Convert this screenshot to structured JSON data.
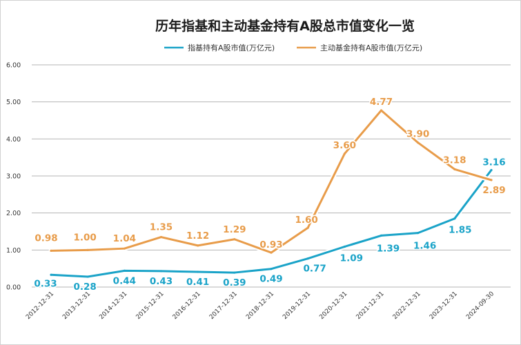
{
  "chart_data": {
    "type": "line",
    "title": "历年指基和主动基金持有A股总市值变化一览",
    "categories": [
      "2012-12-31",
      "2013-12-31",
      "2014-12-31",
      "2015-12-31",
      "2016-12-31",
      "2017-12-31",
      "2018-12-31",
      "2019-12-31",
      "2020-12-31",
      "2021-12-31",
      "2022-12-31",
      "2023-12-31",
      "2024-09-30"
    ],
    "series": [
      {
        "name": "指基持有A股市值(万亿元)",
        "color": "#1aa3c8",
        "values": [
          0.33,
          0.28,
          0.44,
          0.43,
          0.41,
          0.39,
          0.49,
          0.77,
          1.09,
          1.39,
          1.46,
          1.85,
          3.16
        ],
        "labels": [
          "0.33",
          "0.28",
          "0.44",
          "0.43",
          "0.41",
          "0.39",
          "0.49",
          "0.77",
          "1.09",
          "1.39",
          "1.46",
          "1.85",
          "3.16"
        ]
      },
      {
        "name": "主动基金持有A股市值(万亿元)",
        "color": "#e89c4a",
        "values": [
          0.98,
          1.0,
          1.04,
          1.35,
          1.12,
          1.29,
          0.93,
          1.6,
          3.6,
          4.77,
          3.9,
          3.18,
          2.89
        ],
        "labels": [
          "0.98",
          "1.00",
          "1.04",
          "1.35",
          "1.12",
          "1.29",
          "0.93",
          "1.60",
          "3.60",
          "4.77",
          "3.90",
          "3.18",
          "2.89"
        ]
      }
    ],
    "yticks": [
      "0.00",
      "1.00",
      "2.00",
      "3.00",
      "4.00",
      "5.00",
      "6.00"
    ],
    "ylim": [
      0,
      6
    ],
    "grid": true,
    "legend": "top"
  }
}
